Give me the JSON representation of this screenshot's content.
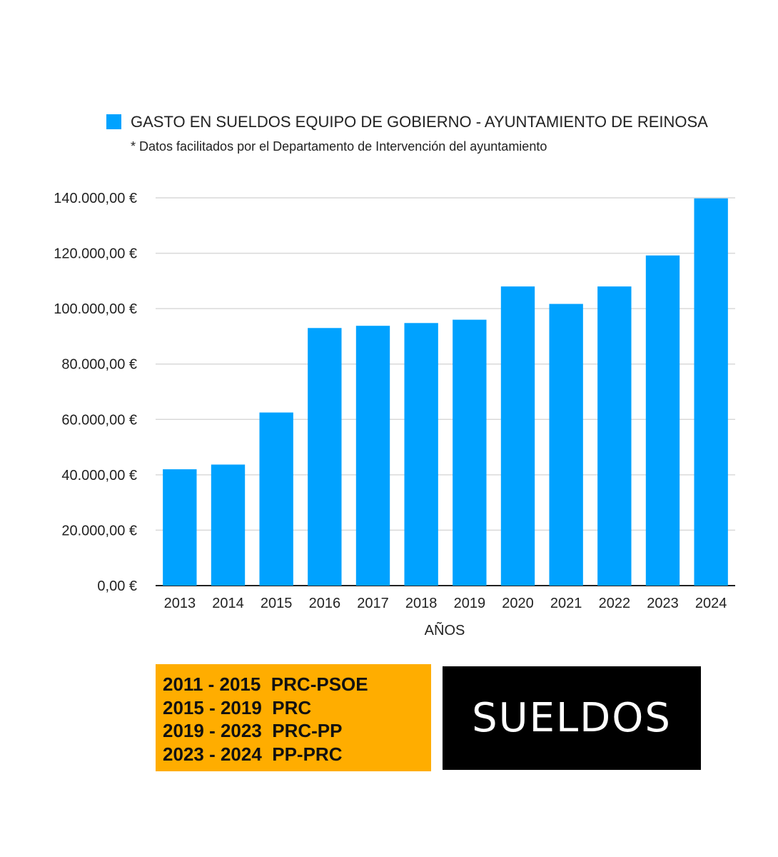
{
  "chart_data": {
    "type": "bar",
    "title": "GASTO EN SUELDOS EQUIPO DE GOBIERNO - AYUNTAMIENTO DE REINOSA",
    "subtitle": "* Datos facilitados por el Departamento de Intervención del ayuntamiento",
    "xlabel": "AÑOS",
    "ylabel": "",
    "categories": [
      "2013",
      "2014",
      "2015",
      "2016",
      "2017",
      "2018",
      "2019",
      "2020",
      "2021",
      "2022",
      "2023",
      "2024"
    ],
    "series": [
      {
        "name": "GASTO EN SUELDOS EQUIPO DE GOBIERNO - AYUNTAMIENTO DE REINOSA",
        "values": [
          42000,
          43700,
          62500,
          93000,
          93800,
          94800,
          96000,
          108000,
          101700,
          108000,
          119200,
          139800
        ]
      }
    ],
    "ylim": [
      0,
      140000
    ],
    "yticks": [
      0,
      20000,
      40000,
      60000,
      80000,
      100000,
      120000,
      140000
    ],
    "ytick_labels": [
      "0,00 €",
      "20.000,00 €",
      "40.000,00 €",
      "60.000,00 €",
      "80.000,00 €",
      "100.000,00 €",
      "120.000,00 €",
      "140.000,00 €"
    ],
    "grid": true,
    "legend_position": "top",
    "bar_color": "#00a2ff"
  },
  "periods": [
    "2011 - 2015  PRC-PSOE",
    "2015 - 2019  PRC",
    "2019 - 2023  PRC-PP",
    "2023 - 2024  PP-PRC"
  ],
  "periods_bg": "#ffad00",
  "badge": {
    "label": "SUELDOS",
    "bg": "#000000",
    "color": "#ffffff"
  }
}
